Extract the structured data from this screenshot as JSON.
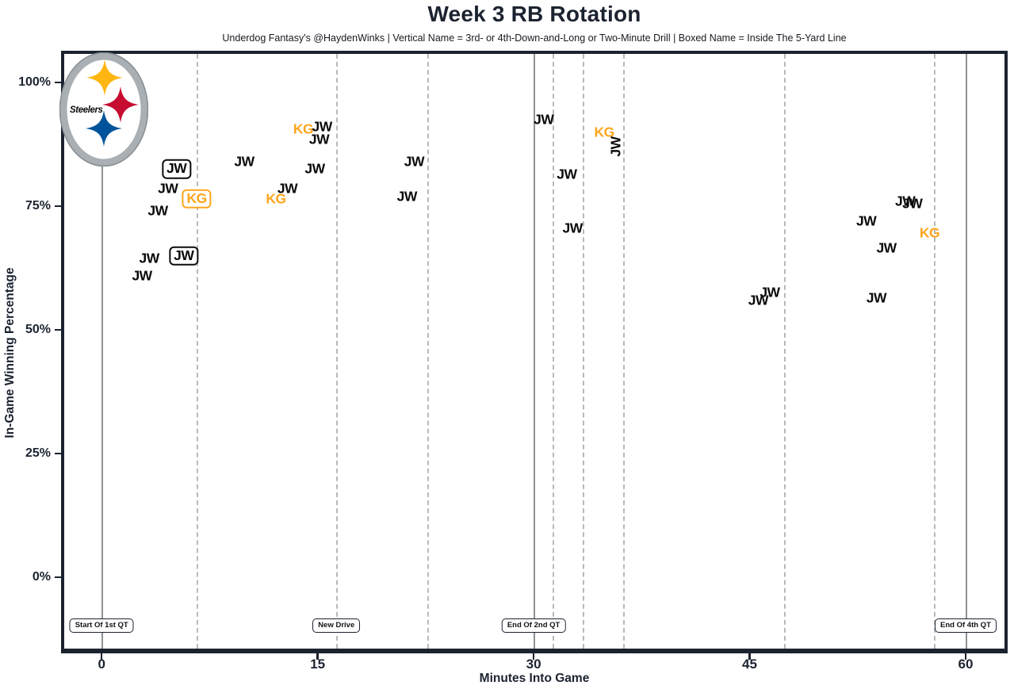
{
  "title": "Week 3 RB Rotation",
  "subtitle": "Underdog Fantasy's @HaydenWinks | Vertical Name = 3rd- or 4th-Down-and-Long or Two-Minute Drill | Boxed Name = Inside The 5-Yard Line",
  "logo": {
    "team": "Steelers"
  },
  "colors": {
    "ink": "#1c2330",
    "jw": "#0b0b0b",
    "kg": "#FFA51D",
    "solid_line": "#8e9194",
    "dashed_line": "#b6b9bc",
    "background": "#ffffff",
    "logo_gold": "#FFB612",
    "logo_red": "#C60C30",
    "logo_blue": "#00539B",
    "logo_silver": "#A9AFB3",
    "logo_edge": "#878d91"
  },
  "chart_data": {
    "type": "scatter",
    "title": "Week 3 RB Rotation",
    "xlabel": "Minutes Into Game",
    "ylabel": "In-Game Winning Percentage",
    "xlim": [
      -2.6,
      62.7
    ],
    "ylim": [
      -14.4,
      105.8
    ],
    "x_ticks": [
      0,
      15,
      30,
      45,
      60
    ],
    "y_ticks": [
      {
        "v": 0,
        "label": "0%"
      },
      {
        "v": 25,
        "label": "25%"
      },
      {
        "v": 50,
        "label": "50%"
      },
      {
        "v": 75,
        "label": "75%"
      },
      {
        "v": 100,
        "label": "100%"
      }
    ],
    "grid": "vertical-lines-only",
    "legend_position": "none",
    "solid_vlines": [
      0,
      30,
      60
    ],
    "dashed_vlines": [
      6.6,
      16.3,
      22.6,
      31.3,
      33.4,
      36.2,
      47.4,
      57.8
    ],
    "annotations": [
      {
        "x": 0,
        "label": "Start Of 1st QT"
      },
      {
        "x": 16.3,
        "label": "New Drive"
      },
      {
        "x": 30,
        "label": "End Of 2nd QT"
      },
      {
        "x": 60,
        "label": "End Of 4th QT"
      }
    ],
    "points": [
      {
        "player": "JW",
        "x": 2.8,
        "y": 61,
        "style": "plain"
      },
      {
        "player": "JW",
        "x": 3.3,
        "y": 64.5,
        "style": "plain"
      },
      {
        "player": "JW",
        "x": 5.7,
        "y": 65,
        "style": "boxed"
      },
      {
        "player": "JW",
        "x": 3.9,
        "y": 74,
        "style": "plain"
      },
      {
        "player": "JW",
        "x": 4.6,
        "y": 78.5,
        "style": "plain"
      },
      {
        "player": "JW",
        "x": 5.2,
        "y": 82.5,
        "style": "boxed"
      },
      {
        "player": "KG",
        "x": 6.6,
        "y": 76.5,
        "style": "boxed"
      },
      {
        "player": "JW",
        "x": 9.9,
        "y": 84,
        "style": "plain"
      },
      {
        "player": "KG",
        "x": 12.1,
        "y": 76.5,
        "style": "plain"
      },
      {
        "player": "JW",
        "x": 12.9,
        "y": 78.5,
        "style": "plain"
      },
      {
        "player": "KG",
        "x": 14.0,
        "y": 90.5,
        "style": "plain"
      },
      {
        "player": "JW",
        "x": 15.1,
        "y": 88.5,
        "style": "plain"
      },
      {
        "player": "JW",
        "x": 15.3,
        "y": 91,
        "style": "plain"
      },
      {
        "player": "JW",
        "x": 14.8,
        "y": 82.5,
        "style": "plain"
      },
      {
        "player": "JW",
        "x": 21.2,
        "y": 77,
        "style": "plain"
      },
      {
        "player": "JW",
        "x": 21.7,
        "y": 84,
        "style": "plain"
      },
      {
        "player": "JW",
        "x": 30.7,
        "y": 92.5,
        "style": "plain"
      },
      {
        "player": "JW",
        "x": 32.3,
        "y": 81.5,
        "style": "plain"
      },
      {
        "player": "JW",
        "x": 32.7,
        "y": 70.5,
        "style": "plain"
      },
      {
        "player": "KG",
        "x": 34.9,
        "y": 90,
        "style": "plain"
      },
      {
        "player": "JW",
        "x": 35.7,
        "y": 87,
        "style": "vertical"
      },
      {
        "player": "JW",
        "x": 45.6,
        "y": 56,
        "style": "plain"
      },
      {
        "player": "JW",
        "x": 46.4,
        "y": 57.5,
        "style": "plain"
      },
      {
        "player": "JW",
        "x": 53.1,
        "y": 72,
        "style": "plain"
      },
      {
        "player": "JW",
        "x": 53.8,
        "y": 56.5,
        "style": "plain"
      },
      {
        "player": "JW",
        "x": 54.5,
        "y": 66.5,
        "style": "plain"
      },
      {
        "player": "JW",
        "x": 55.8,
        "y": 76,
        "style": "plain"
      },
      {
        "player": "JW",
        "x": 56.3,
        "y": 75.5,
        "style": "plain"
      },
      {
        "player": "KG",
        "x": 57.5,
        "y": 69.5,
        "style": "plain"
      }
    ]
  }
}
